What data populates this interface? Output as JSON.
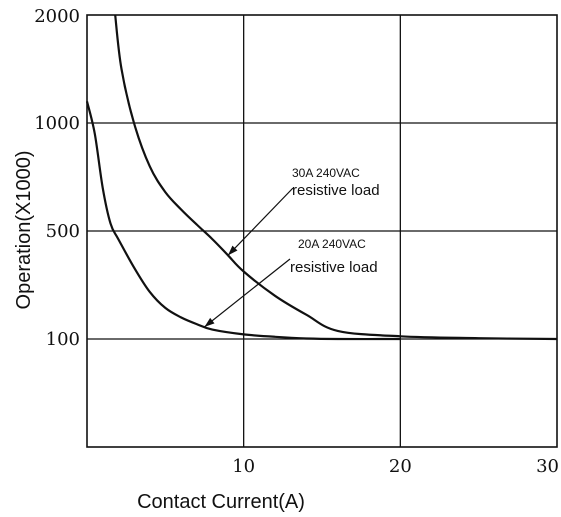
{
  "chart_data": {
    "type": "line",
    "title": "",
    "xlabel": "Contact Current(A)",
    "ylabel": "Operation(X1000)",
    "xlim": [
      0,
      30
    ],
    "ylim_rows": [
      0,
      4
    ],
    "x_ticks": [
      {
        "value": 10,
        "label": "10"
      },
      {
        "value": 20,
        "label": "20"
      },
      {
        "value": 30,
        "label": "30"
      }
    ],
    "y_ticks": [
      {
        "row": 1,
        "label": "100"
      },
      {
        "row": 2,
        "label": "500"
      },
      {
        "row": 3,
        "label": "1000"
      },
      {
        "row": 4,
        "label": "2000"
      }
    ],
    "grid": true,
    "series": [
      {
        "name": "30A 240VAC resistive load",
        "points": [
          [
            1.8,
            2000
          ],
          [
            2.2,
            1500
          ],
          [
            3,
            1000
          ],
          [
            4,
            800
          ],
          [
            5,
            680
          ],
          [
            6,
            600
          ],
          [
            7,
            530
          ],
          [
            8,
            470
          ],
          [
            9,
            410
          ],
          [
            10,
            350
          ],
          [
            12,
            260
          ],
          [
            14,
            190
          ],
          [
            16,
            130
          ],
          [
            20,
            110
          ],
          [
            25,
            103
          ],
          [
            30,
            100
          ]
        ]
      },
      {
        "name": "20A 240VAC resistive load",
        "points": [
          [
            0,
            1200
          ],
          [
            0.5,
            950
          ],
          [
            1,
            700
          ],
          [
            1.5,
            535
          ],
          [
            2,
            470
          ],
          [
            3,
            365
          ],
          [
            4,
            275
          ],
          [
            5,
            215
          ],
          [
            6,
            180
          ],
          [
            7,
            155
          ],
          [
            8,
            135
          ],
          [
            10,
            117
          ],
          [
            12,
            108
          ],
          [
            14,
            102
          ],
          [
            16,
            100
          ],
          [
            20,
            100
          ]
        ]
      }
    ],
    "annotations": [
      {
        "line1": "30A 240VAC",
        "line2": "resistive load",
        "target": [
          9,
          410
        ]
      },
      {
        "line1": "20A 240VAC",
        "line2": "resistive load",
        "target": [
          7.5,
          145
        ]
      }
    ]
  }
}
